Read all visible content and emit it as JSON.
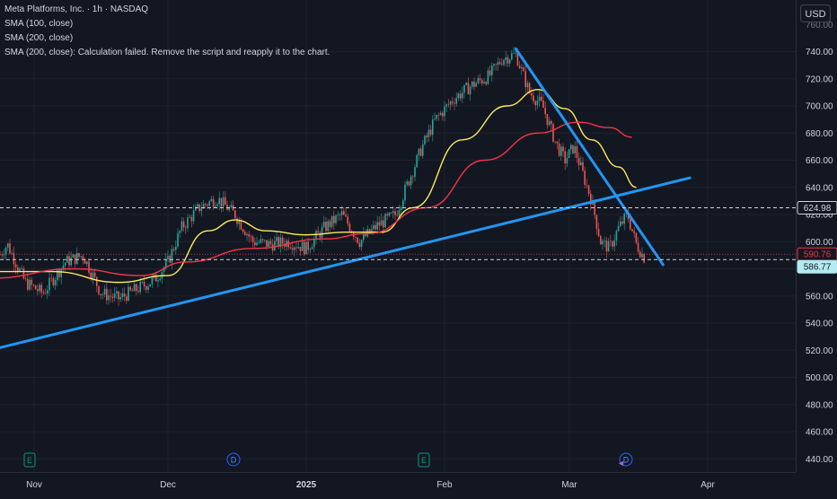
{
  "header": {
    "symbol_line": "Meta Platforms, Inc. · 1h · NASDAQ",
    "indicators": [
      "SMA (100, close)",
      "SMA (200, close)",
      "SMA (200, close): Calculation failed. Remove the script and reapply it to the chart."
    ]
  },
  "currency_button": "USD",
  "price_axis": {
    "ticks": [
      740,
      720,
      700,
      680,
      660,
      640,
      620,
      600,
      580,
      560,
      540,
      520,
      500,
      480,
      460,
      440
    ],
    "tick_labels": [
      "740.00",
      "720.00",
      "700.00",
      "680.00",
      "660.00",
      "640.00",
      "620.00",
      "600.00",
      "580.00",
      "560.00",
      "540.00",
      "520.00",
      "500.00",
      "480.00",
      "460.00",
      "440.00"
    ],
    "top_partial_label": "760.00"
  },
  "price_labels": {
    "level_label": "624.98",
    "last_label": "590.76",
    "current_label": "586.77"
  },
  "time_axis": {
    "labels": [
      "Nov",
      "Dec",
      "2025",
      "Feb",
      "Mar",
      "Apr"
    ]
  },
  "event_markers": [
    {
      "letter": "E",
      "type": "earnings"
    },
    {
      "letter": "D",
      "type": "dividend"
    },
    {
      "letter": "E",
      "type": "earnings"
    },
    {
      "letter": "D",
      "type": "dividend"
    }
  ],
  "colors": {
    "background": "#131722",
    "trendline": "#2196f3",
    "sma100": "#fbeb5a",
    "sma200": "#f23645",
    "candle_up": "#26a69a",
    "candle_down": "#ef5350",
    "last_price_badge": "#f23645",
    "current_price_badge": "#b2ebf2"
  },
  "chart_data": {
    "type": "candlestick",
    "symbol": "META",
    "interval": "1h",
    "ylim": [
      430,
      765
    ],
    "price_levels": {
      "dashed_level": 624.98,
      "last_price": 590.76,
      "current_price": 586.77
    },
    "price_path": [
      {
        "x": "Oct 22",
        "y": 580
      },
      {
        "x": "Oct 26",
        "y": 598
      },
      {
        "x": "Oct 30",
        "y": 570
      },
      {
        "x": "Nov 3",
        "y": 562
      },
      {
        "x": "Nov 8",
        "y": 585
      },
      {
        "x": "Nov 12",
        "y": 590
      },
      {
        "x": "Nov 16",
        "y": 562
      },
      {
        "x": "Nov 20",
        "y": 558
      },
      {
        "x": "Nov 24",
        "y": 565
      },
      {
        "x": "Nov 28",
        "y": 572
      },
      {
        "x": "Dec 1",
        "y": 585
      },
      {
        "x": "Dec 4",
        "y": 610
      },
      {
        "x": "Dec 8",
        "y": 625
      },
      {
        "x": "Dec 12",
        "y": 632
      },
      {
        "x": "Dec 16",
        "y": 620
      },
      {
        "x": "Dec 20",
        "y": 600
      },
      {
        "x": "Dec 24",
        "y": 598
      },
      {
        "x": "Dec 28",
        "y": 600
      },
      {
        "x": "Jan 1",
        "y": 595
      },
      {
        "x": "Jan 5",
        "y": 610
      },
      {
        "x": "Jan 9",
        "y": 620
      },
      {
        "x": "Jan 13",
        "y": 600
      },
      {
        "x": "Jan 17",
        "y": 612
      },
      {
        "x": "Jan 21",
        "y": 620
      },
      {
        "x": "Jan 24",
        "y": 645
      },
      {
        "x": "Jan 27",
        "y": 670
      },
      {
        "x": "Jan 30",
        "y": 690
      },
      {
        "x": "Feb 3",
        "y": 705
      },
      {
        "x": "Feb 7",
        "y": 715
      },
      {
        "x": "Feb 11",
        "y": 722
      },
      {
        "x": "Feb 14",
        "y": 735
      },
      {
        "x": "Feb 17",
        "y": 738
      },
      {
        "x": "Feb 20",
        "y": 710
      },
      {
        "x": "Feb 23",
        "y": 700
      },
      {
        "x": "Feb 26",
        "y": 672
      },
      {
        "x": "Feb 28",
        "y": 660
      },
      {
        "x": "Mar 2",
        "y": 670
      },
      {
        "x": "Mar 4",
        "y": 650
      },
      {
        "x": "Mar 6",
        "y": 630
      },
      {
        "x": "Mar 8",
        "y": 600
      },
      {
        "x": "Mar 10",
        "y": 595
      },
      {
        "x": "Mar 12",
        "y": 610
      },
      {
        "x": "Mar 14",
        "y": 620
      },
      {
        "x": "Mar 16",
        "y": 598
      },
      {
        "x": "Mar 18",
        "y": 587
      }
    ],
    "series": [
      {
        "name": "SMA (100, close)",
        "values": [
          {
            "x": "Oct 22",
            "y": 578
          },
          {
            "x": "Nov 5",
            "y": 578
          },
          {
            "x": "Nov 20",
            "y": 570
          },
          {
            "x": "Dec 1",
            "y": 575
          },
          {
            "x": "Dec 10",
            "y": 608
          },
          {
            "x": "Dec 16",
            "y": 616
          },
          {
            "x": "Dec 23",
            "y": 608
          },
          {
            "x": "Jan 1",
            "y": 605
          },
          {
            "x": "Jan 10",
            "y": 607
          },
          {
            "x": "Jan 18",
            "y": 607
          },
          {
            "x": "Jan 25",
            "y": 625
          },
          {
            "x": "Feb 5",
            "y": 675
          },
          {
            "x": "Feb 15",
            "y": 700
          },
          {
            "x": "Feb 22",
            "y": 712
          },
          {
            "x": "Feb 28",
            "y": 698
          },
          {
            "x": "Mar 6",
            "y": 675
          },
          {
            "x": "Mar 12",
            "y": 655
          },
          {
            "x": "Mar 16",
            "y": 640
          }
        ]
      },
      {
        "name": "SMA (200, close)",
        "values": [
          {
            "x": "Oct 22",
            "y": 573
          },
          {
            "x": "Nov 10",
            "y": 580
          },
          {
            "x": "Nov 25",
            "y": 575
          },
          {
            "x": "Dec 5",
            "y": 585
          },
          {
            "x": "Dec 20",
            "y": 595
          },
          {
            "x": "Jan 5",
            "y": 602
          },
          {
            "x": "Jan 15",
            "y": 606
          },
          {
            "x": "Jan 28",
            "y": 625
          },
          {
            "x": "Feb 10",
            "y": 660
          },
          {
            "x": "Feb 22",
            "y": 680
          },
          {
            "x": "Mar 3",
            "y": 688
          },
          {
            "x": "Mar 10",
            "y": 684
          },
          {
            "x": "Mar 15",
            "y": 677
          }
        ]
      }
    ],
    "trendlines": [
      {
        "name": "ascending support",
        "from": {
          "x": "Oct 22",
          "y": 520
        },
        "to": {
          "x": "Mar 28",
          "y": 647
        }
      },
      {
        "name": "descending resistance",
        "from": {
          "x": "Feb 17",
          "y": 742
        },
        "to": {
          "x": "Mar 22",
          "y": 583
        }
      }
    ]
  }
}
